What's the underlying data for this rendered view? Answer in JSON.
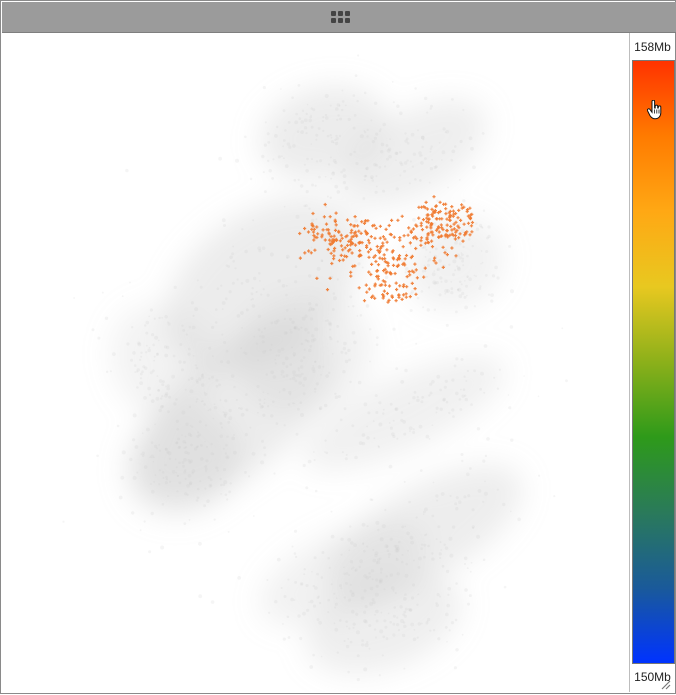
{
  "window": {
    "grip_icon": "drag-handle-grid-icon",
    "resize_icon": "resize-corner-icon"
  },
  "legend": {
    "max_label": "158Mb",
    "min_label": "150Mb",
    "gradient_colors": [
      "#ff3300",
      "#ff7b00",
      "#ffa814",
      "#e8c820",
      "#8cb01a",
      "#2e9a1a",
      "#2a7a5a",
      "#1a5a9a",
      "#0033ff"
    ],
    "cursor_icon": "pointer-hand-icon"
  },
  "plot": {
    "background_cloud_color": "#c8c8c8",
    "highlight_color": "#f07a30",
    "highlight_marker": "plus"
  }
}
